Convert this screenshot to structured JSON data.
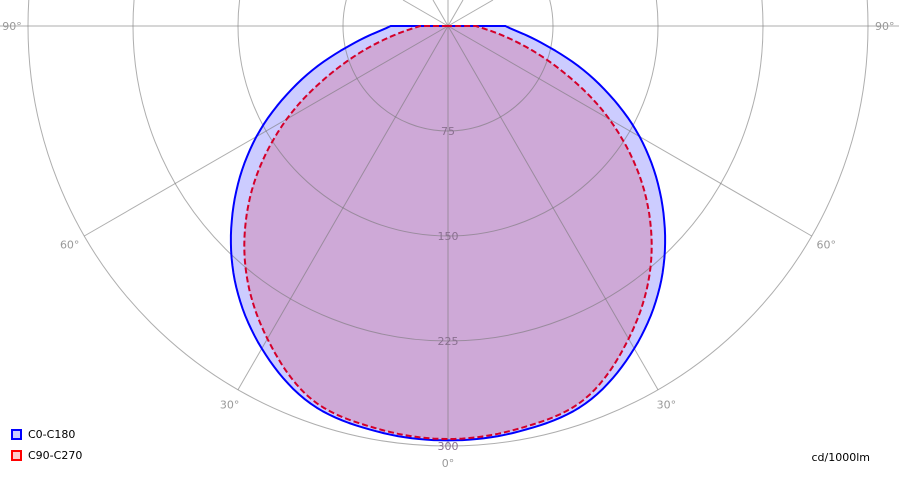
{
  "chart_data": {
    "type": "polar",
    "unit_label": "cd/1000lm",
    "radial_ticks": [
      75,
      150,
      225,
      300
    ],
    "radial_max": 300,
    "angle_labels": [
      {
        "angle": 90,
        "label": "90°"
      },
      {
        "angle": 60,
        "label": "60°"
      },
      {
        "angle": 30,
        "label": "30°"
      },
      {
        "angle": 0,
        "label": "0°"
      },
      {
        "angle": -30,
        "label": "30°"
      },
      {
        "angle": -60,
        "label": "60°"
      },
      {
        "angle": -90,
        "label": "90°"
      }
    ],
    "angles": [
      0,
      10,
      20,
      30,
      40,
      50,
      60,
      70,
      80,
      90
    ],
    "series": [
      {
        "name": "C0-C180",
        "stroke": "#0000ff",
        "fill": "rgba(0,0,255,0.2)",
        "legend_fill": "#ccccff",
        "dashed": false,
        "values": [
          296,
          294,
          287,
          266,
          237,
          200,
          158,
          111,
          67,
          41
        ]
      },
      {
        "name": "C90-C270",
        "stroke": "#d4002a",
        "fill": "rgba(220,20,40,0.19)",
        "legend_fill": "#ffcccc",
        "dashed": true,
        "values": [
          295,
          292,
          284,
          258,
          225,
          183,
          133,
          80,
          40,
          20
        ]
      }
    ],
    "grid": true,
    "legend_position": "bottom-left"
  }
}
